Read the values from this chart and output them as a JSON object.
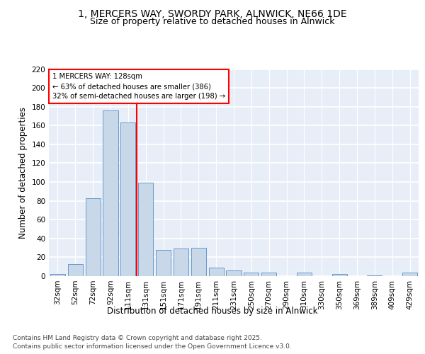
{
  "title_line1": "1, MERCERS WAY, SWORDY PARK, ALNWICK, NE66 1DE",
  "title_line2": "Size of property relative to detached houses in Alnwick",
  "xlabel": "Distribution of detached houses by size in Alnwick",
  "ylabel": "Number of detached properties",
  "categories": [
    "32sqm",
    "52sqm",
    "72sqm",
    "92sqm",
    "111sqm",
    "131sqm",
    "151sqm",
    "171sqm",
    "191sqm",
    "211sqm",
    "231sqm",
    "250sqm",
    "270sqm",
    "290sqm",
    "310sqm",
    "330sqm",
    "350sqm",
    "369sqm",
    "389sqm",
    "409sqm",
    "429sqm"
  ],
  "values": [
    2,
    13,
    83,
    176,
    163,
    99,
    28,
    29,
    30,
    9,
    6,
    4,
    4,
    0,
    4,
    0,
    2,
    0,
    1,
    0,
    4
  ],
  "bar_color": "#c8d8e8",
  "bar_edge_color": "#6699cc",
  "vline_color": "red",
  "vline_x_index": 5,
  "annotation_title": "1 MERCERS WAY: 128sqm",
  "annotation_line2": "← 63% of detached houses are smaller (386)",
  "annotation_line3": "32% of semi-detached houses are larger (198) →",
  "annotation_box_color": "white",
  "annotation_box_edge": "red",
  "ylim": [
    0,
    220
  ],
  "yticks": [
    0,
    20,
    40,
    60,
    80,
    100,
    120,
    140,
    160,
    180,
    200,
    220
  ],
  "footnote_line1": "Contains HM Land Registry data © Crown copyright and database right 2025.",
  "footnote_line2": "Contains public sector information licensed under the Open Government Licence v3.0.",
  "background_color": "#e8eef8",
  "grid_color": "white",
  "title_fontsize": 10,
  "subtitle_fontsize": 9,
  "axis_label_fontsize": 8.5,
  "tick_fontsize": 7.5,
  "footnote_fontsize": 6.5
}
